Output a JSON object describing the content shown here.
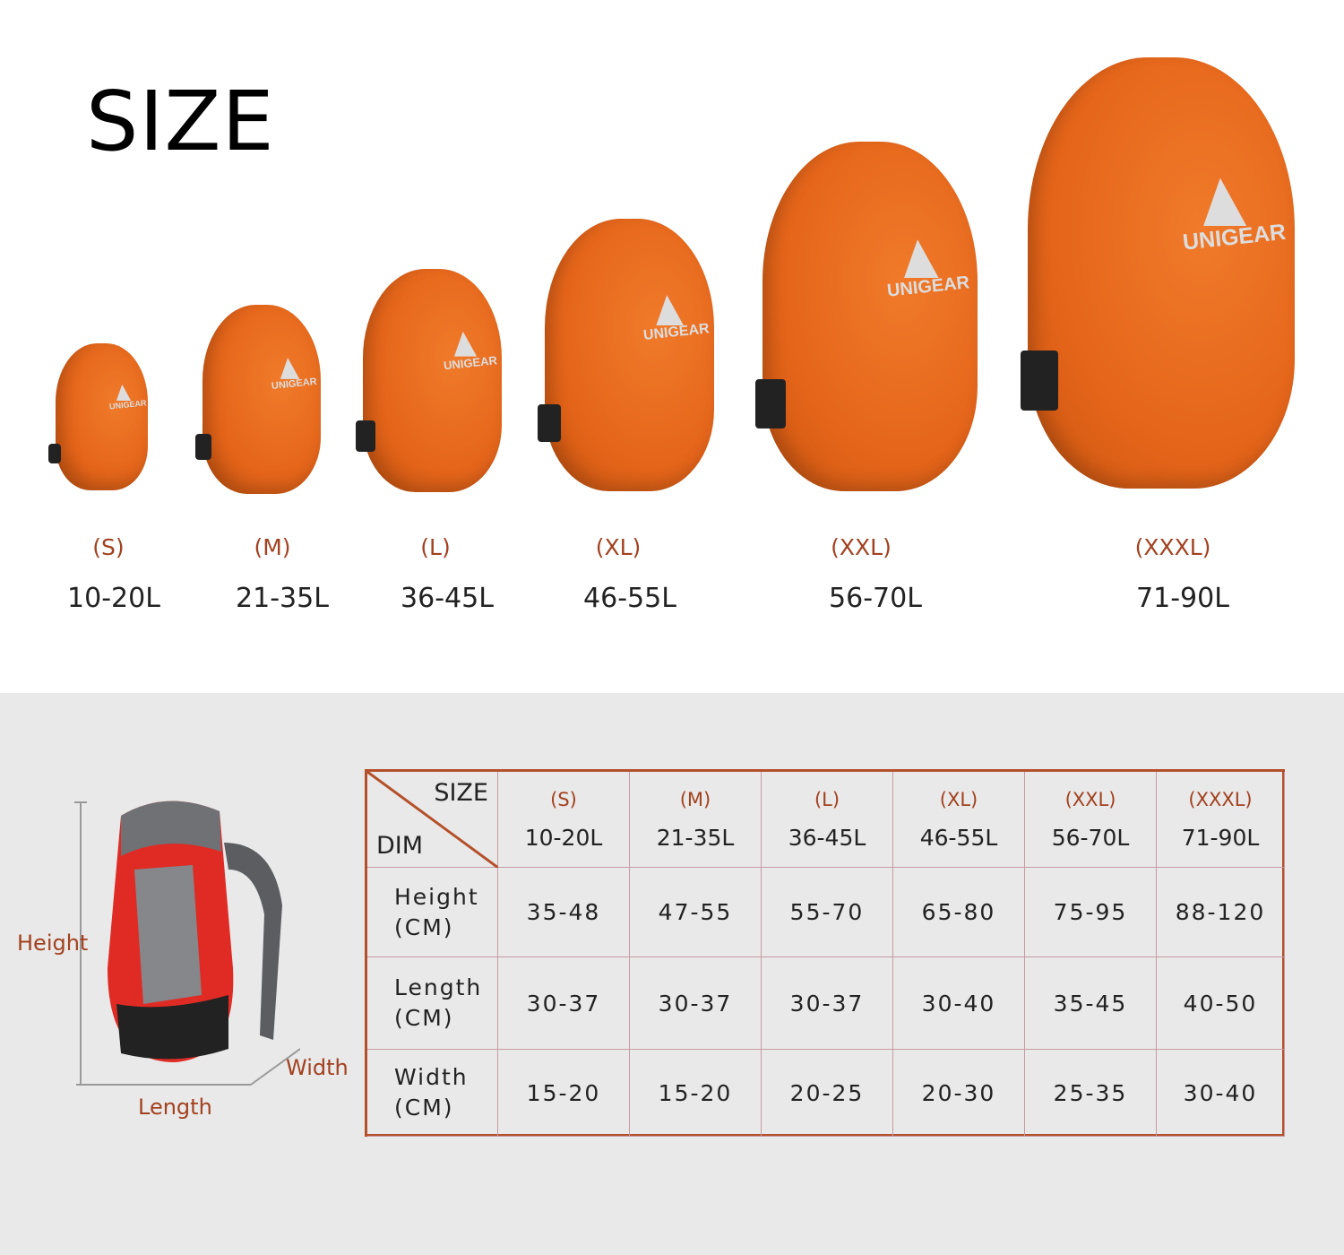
{
  "title": "SIZE",
  "brand": "UNIGEAR",
  "sizes": [
    {
      "size": "(S)",
      "volume": "10-20L"
    },
    {
      "size": "(M)",
      "volume": "21-35L"
    },
    {
      "size": "(L)",
      "volume": "36-45L"
    },
    {
      "size": "(XL)",
      "volume": "46-55L"
    },
    {
      "size": "(XXL)",
      "volume": "56-70L"
    },
    {
      "size": "(XXXL)",
      "volume": "71-90L"
    }
  ],
  "dimensions_diagram": {
    "height": "Height",
    "length": "Length",
    "width": "Width"
  },
  "table": {
    "corner_top": "SIZE",
    "corner_bottom": "DIM",
    "rows": [
      {
        "label": "Height",
        "unit": "(CM)",
        "values": [
          "35-48",
          "47-55",
          "55-70",
          "65-80",
          "75-95",
          "88-120"
        ]
      },
      {
        "label": "Length",
        "unit": "(CM)",
        "values": [
          "30-37",
          "30-37",
          "30-37",
          "30-40",
          "35-45",
          "40-50"
        ]
      },
      {
        "label": "Width",
        "unit": "(CM)",
        "values": [
          "15-20",
          "15-20",
          "20-25",
          "20-30",
          "25-35",
          "30-40"
        ]
      }
    ]
  },
  "colors": {
    "cover": "#e8691e",
    "accent_text": "#a2411f",
    "table_border": "#b4502a",
    "panel": "#e9e9e9"
  }
}
